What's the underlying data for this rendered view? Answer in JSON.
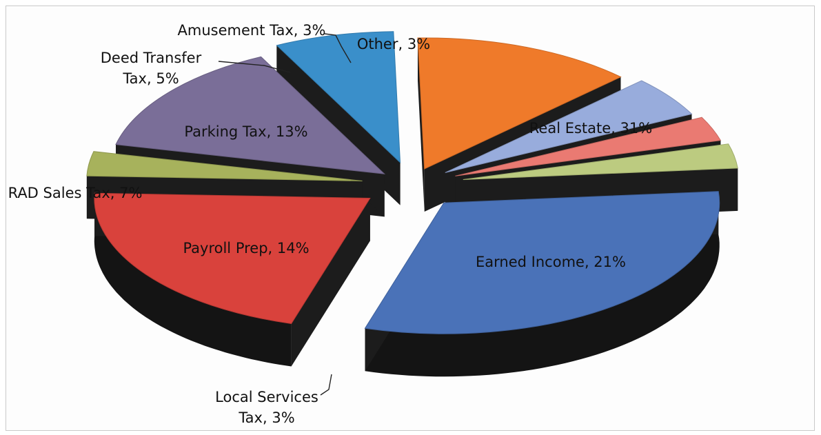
{
  "chart_data": {
    "type": "pie",
    "style": "3d-exploded",
    "title": "",
    "legend": "none",
    "slices": [
      {
        "category": "Real Estate",
        "value": 31,
        "label": "Real Estate, 31%",
        "color": "#4a72b8"
      },
      {
        "category": "Earned Income",
        "value": 21,
        "label": "Earned Income, 21%",
        "color": "#d9423c"
      },
      {
        "category": "Local Services Tax",
        "value": 3,
        "label_lines": [
          "Local Services",
          "Tax, 3%"
        ],
        "color": "#a7b25c"
      },
      {
        "category": "Payroll Prep",
        "value": 14,
        "label": "Payroll Prep, 14%",
        "color": "#7a6e98"
      },
      {
        "category": "RAD Sales Tax",
        "value": 7,
        "label": "RAD Sales Tax, 7%",
        "color": "#3a8fca"
      },
      {
        "category": "Parking Tax",
        "value": 13,
        "label": "Parking Tax, 13%",
        "color": "#ef7a2a"
      },
      {
        "category": "Deed Transfer Tax",
        "value": 5,
        "label_lines": [
          "Deed Transfer",
          "Tax, 5%"
        ],
        "color": "#98acdc"
      },
      {
        "category": "Amusement Tax",
        "value": 3,
        "label": "Amusement Tax, 3%",
        "color": "#ea7a72"
      },
      {
        "category": "Other",
        "value": 3,
        "label": "Other, 3%",
        "color": "#bccb80"
      }
    ]
  }
}
